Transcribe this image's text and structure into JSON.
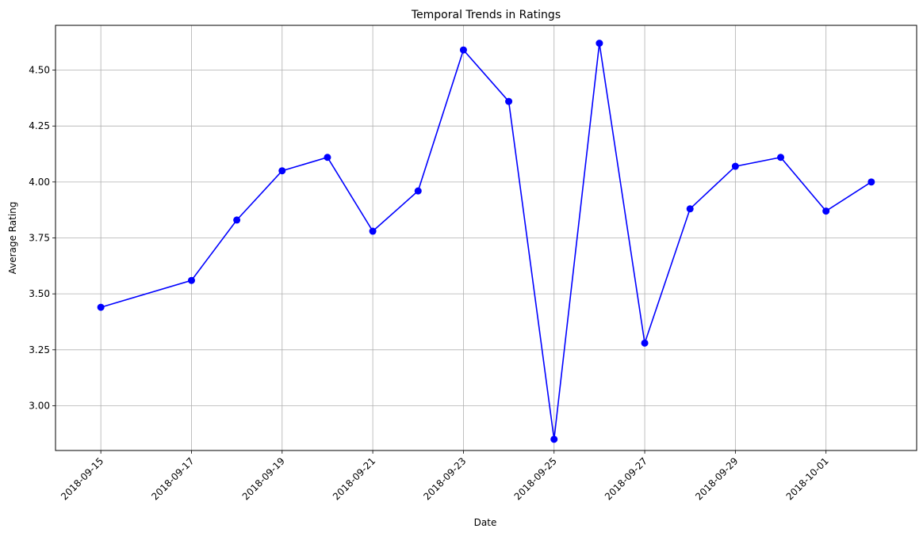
{
  "chart_data": {
    "type": "line",
    "title": "Temporal Trends in Ratings",
    "xlabel": "Date",
    "ylabel": "Average Rating",
    "x_ticks": [
      "2018-09-15",
      "2018-09-17",
      "2018-09-19",
      "2018-09-21",
      "2018-09-23",
      "2018-09-25",
      "2018-09-27",
      "2018-09-29",
      "2018-10-01"
    ],
    "y_ticks": [
      "3.00",
      "3.25",
      "3.50",
      "3.75",
      "4.00",
      "4.25",
      "4.50"
    ],
    "ylim": [
      2.8,
      4.7
    ],
    "xlim": [
      "2018-09-14",
      "2018-10-03"
    ],
    "grid": true,
    "series": [
      {
        "color": "#0000ff",
        "marker": "circle",
        "points": [
          {
            "x": "2018-09-15",
            "y": 3.44
          },
          {
            "x": "2018-09-17",
            "y": 3.56
          },
          {
            "x": "2018-09-18",
            "y": 3.83
          },
          {
            "x": "2018-09-19",
            "y": 4.05
          },
          {
            "x": "2018-09-20",
            "y": 4.11
          },
          {
            "x": "2018-09-21",
            "y": 3.78
          },
          {
            "x": "2018-09-22",
            "y": 3.96
          },
          {
            "x": "2018-09-23",
            "y": 4.59
          },
          {
            "x": "2018-09-24",
            "y": 4.36
          },
          {
            "x": "2018-09-25",
            "y": 2.85
          },
          {
            "x": "2018-09-26",
            "y": 4.62
          },
          {
            "x": "2018-09-27",
            "y": 3.28
          },
          {
            "x": "2018-09-28",
            "y": 3.88
          },
          {
            "x": "2018-09-29",
            "y": 4.07
          },
          {
            "x": "2018-09-30",
            "y": 4.11
          },
          {
            "x": "2018-10-01",
            "y": 3.87
          },
          {
            "x": "2018-10-02",
            "y": 4.0
          }
        ]
      }
    ]
  }
}
